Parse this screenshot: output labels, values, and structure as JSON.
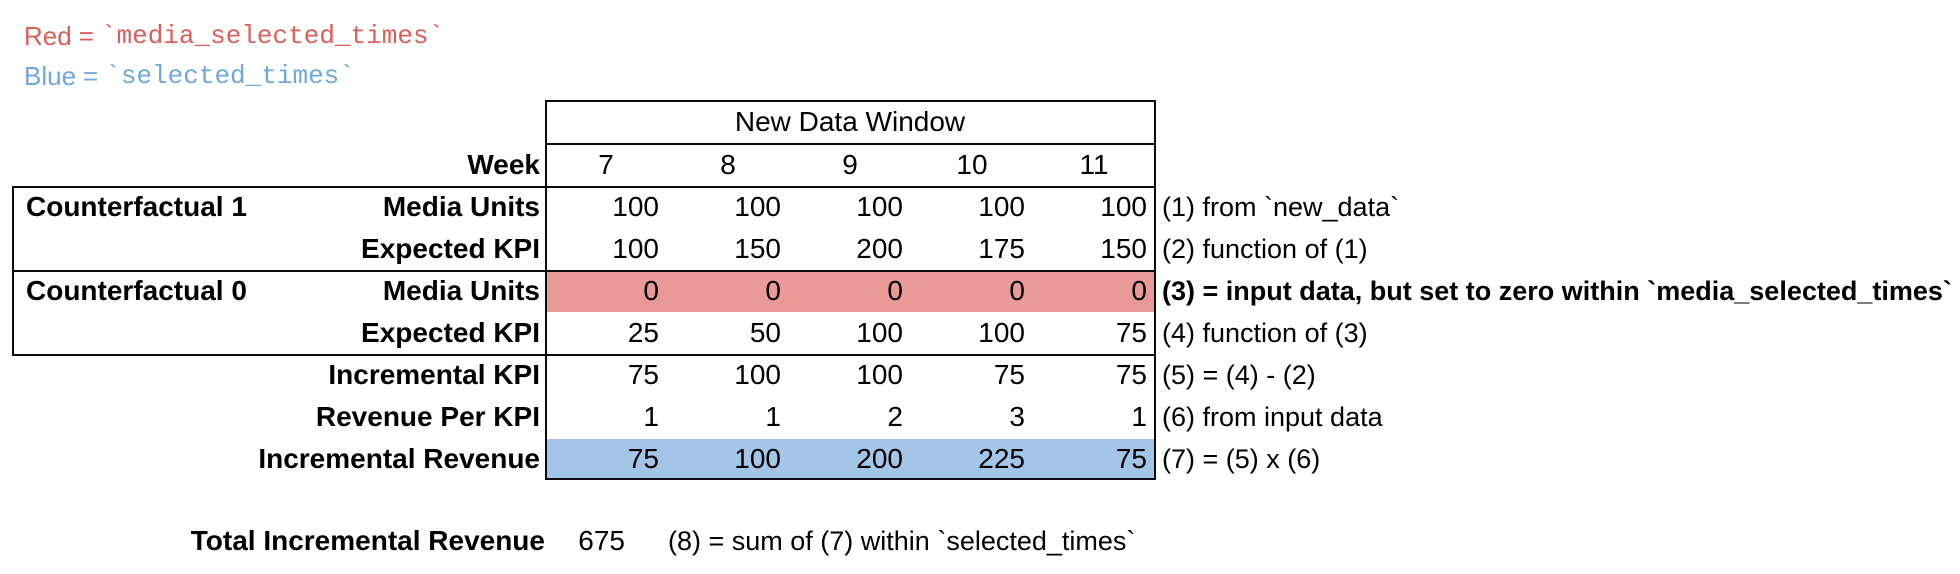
{
  "legend": {
    "red_label": "Red",
    "blue_label": "Blue",
    "eq": "=",
    "red_code": "`media_selected_times`",
    "blue_code": "`selected_times`"
  },
  "table": {
    "header": "New Data Window",
    "week_label": "Week",
    "weeks": [
      "7",
      "8",
      "9",
      "10",
      "11"
    ],
    "rows": [
      {
        "group": "Counterfactual 1",
        "label": "Media Units",
        "values": [
          100,
          100,
          100,
          100,
          100
        ],
        "note": "(1) from `new_data`"
      },
      {
        "label": "Expected KPI",
        "values": [
          100,
          150,
          200,
          175,
          150
        ],
        "note": "(2) function of (1)"
      },
      {
        "group": "Counterfactual 0",
        "label": "Media Units",
        "fill": "red",
        "values": [
          0,
          0,
          0,
          0,
          0
        ],
        "note": "(3) = input data, but set to zero within `media_selected_times`",
        "note_bold": true
      },
      {
        "label": "Expected KPI",
        "values": [
          25,
          50,
          100,
          100,
          75
        ],
        "note": "(4) function of (3)"
      },
      {
        "label": "Incremental KPI",
        "values": [
          75,
          100,
          100,
          75,
          75
        ],
        "note": "(5) = (4) - (2)"
      },
      {
        "label": "Revenue Per KPI",
        "values": [
          1,
          1,
          2,
          3,
          1
        ],
        "note": "(6) from input data"
      },
      {
        "label": "Incremental Revenue",
        "fill": "blue",
        "values": [
          75,
          100,
          200,
          225,
          75
        ],
        "note": "(7) = (5) x (6)"
      }
    ]
  },
  "total": {
    "label": "Total Incremental Revenue",
    "value": "675",
    "note": "(8) = sum of (7) within `selected_times`"
  },
  "colors": {
    "red_text": "#dd5f5c",
    "blue_text": "#6fa8dc",
    "red_fill": "#ea9999",
    "blue_fill": "#a3c6e8",
    "border": "#0b0b0b"
  }
}
